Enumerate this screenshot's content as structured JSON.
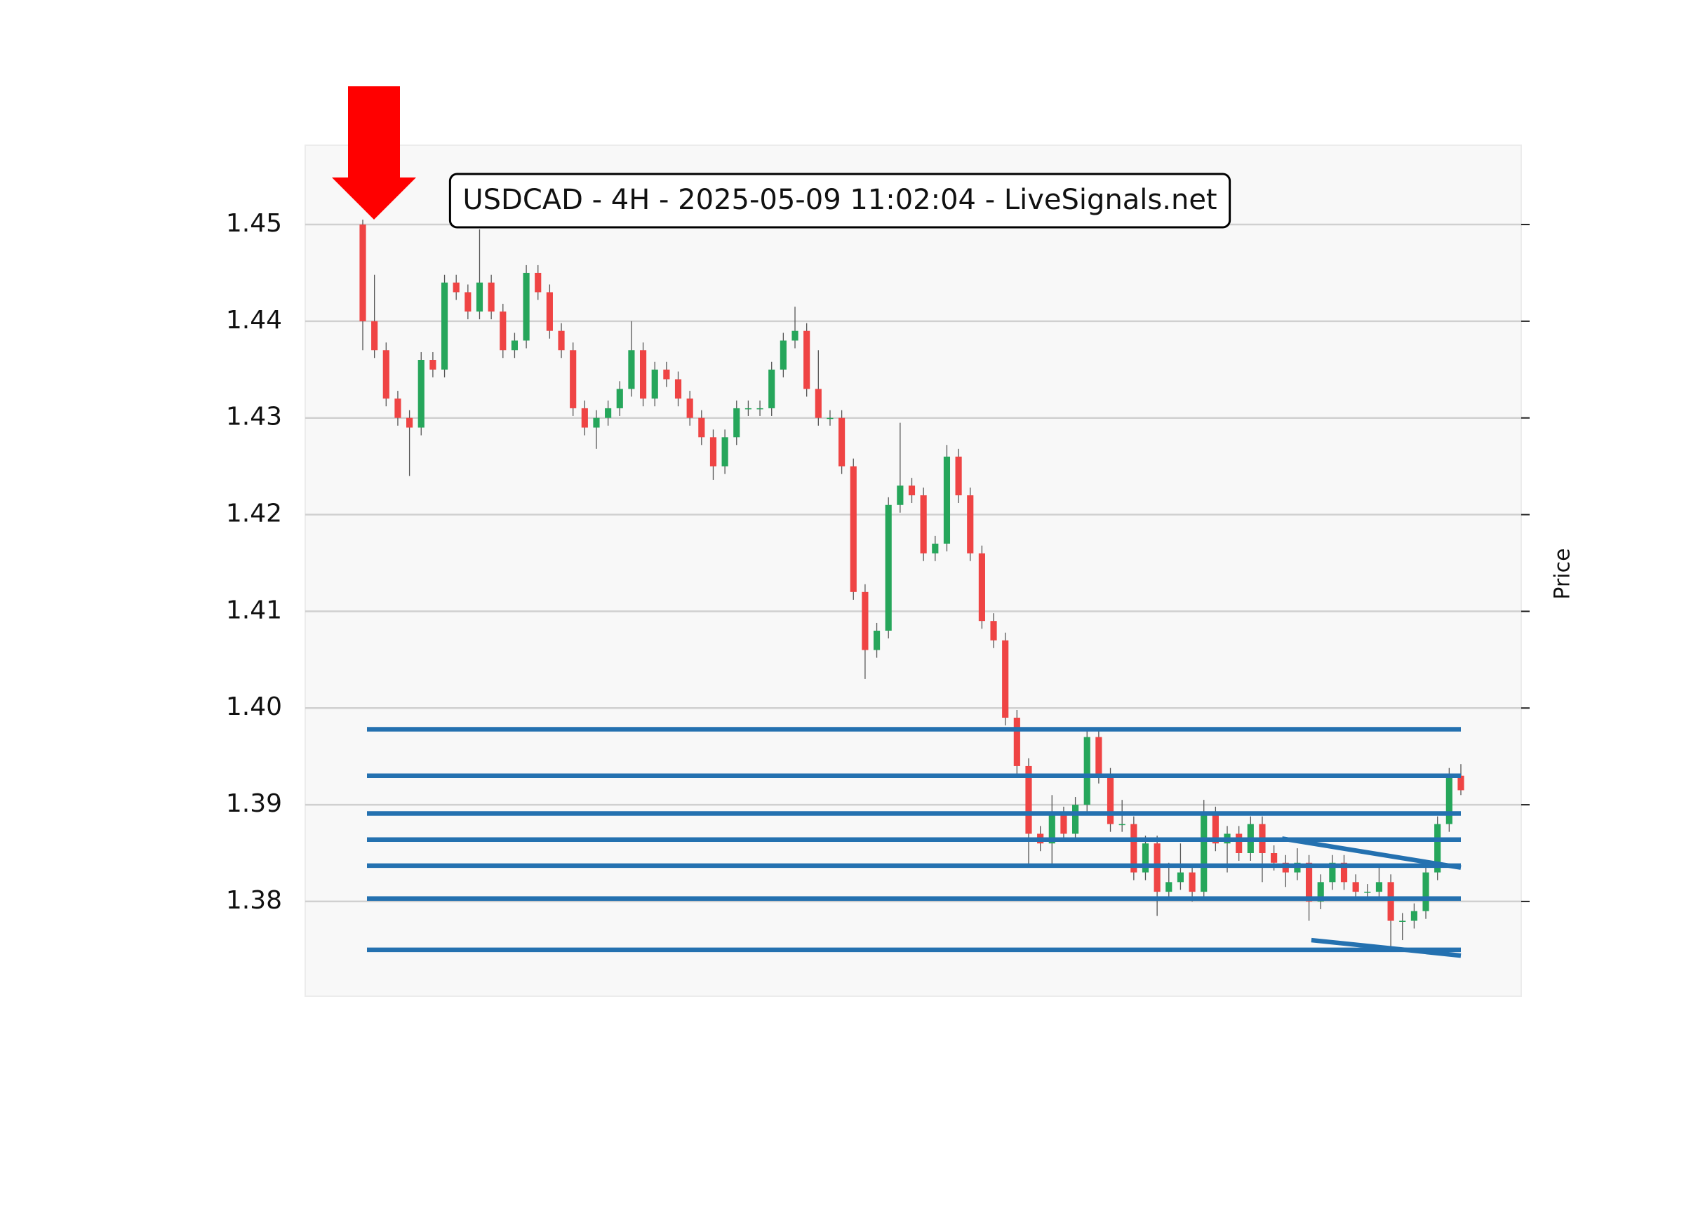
{
  "chart_data": {
    "type": "candlestick",
    "title": "USDCAD - 4H - 2025-05-09 11:02:04 - LiveSignals.net",
    "ylabel": "Price",
    "ylim": [
      1.3702,
      1.4582
    ],
    "yticks": [
      1.38,
      1.39,
      {
        "value": 1.4,
        "label": "1.40"
      },
      1.41,
      1.42,
      1.43,
      1.44,
      1.45
    ],
    "grid": true,
    "up_color": "#26a65b",
    "down_color": "#ef4444",
    "level_color": "#2471b0",
    "open": [
      1.45,
      1.44,
      1.437,
      1.432,
      1.43,
      1.429,
      1.436,
      1.435,
      1.444,
      1.443,
      1.441,
      1.444,
      1.441,
      1.437,
      1.438,
      1.445,
      1.443,
      1.439,
      1.437,
      1.431,
      1.429,
      1.43,
      1.431,
      1.433,
      1.437,
      1.432,
      1.435,
      1.434,
      1.432,
      1.43,
      1.428,
      1.425,
      1.428,
      1.431,
      1.431,
      1.431,
      1.435,
      1.438,
      1.439,
      1.433,
      1.43,
      1.43,
      1.425,
      1.412,
      1.406,
      1.408,
      1.421,
      1.423,
      1.422,
      1.416,
      1.417,
      1.426,
      1.422,
      1.416,
      1.409,
      1.407,
      1.399,
      1.394,
      1.387,
      1.386,
      1.389,
      1.387,
      1.39,
      1.397,
      1.393,
      1.388,
      1.388,
      1.383,
      1.386,
      1.381,
      1.382,
      1.383,
      1.381,
      1.389,
      1.386,
      1.387,
      1.385,
      1.388,
      1.385,
      1.384,
      1.383,
      1.384,
      1.38,
      1.382,
      1.384,
      1.382,
      1.381,
      1.381,
      1.382,
      1.378,
      1.378,
      1.379,
      1.383,
      1.388,
      1.393
    ],
    "high": [
      1.4505,
      1.4448,
      1.4378,
      1.4328,
      1.4308,
      1.4368,
      1.4368,
      1.4448,
      1.4448,
      1.4438,
      1.4495,
      1.4448,
      1.4418,
      1.4388,
      1.4458,
      1.4458,
      1.4438,
      1.4398,
      1.4378,
      1.4318,
      1.4308,
      1.4318,
      1.4338,
      1.44,
      1.4378,
      1.4358,
      1.4358,
      1.4348,
      1.4328,
      1.4308,
      1.4288,
      1.4288,
      1.4318,
      1.4318,
      1.4318,
      1.4358,
      1.4388,
      1.4415,
      1.4398,
      1.437,
      1.4308,
      1.4308,
      1.4258,
      1.4128,
      1.4088,
      1.4218,
      1.4295,
      1.4238,
      1.4228,
      1.4178,
      1.4272,
      1.4268,
      1.4228,
      1.4168,
      1.4098,
      1.4078,
      1.3998,
      1.3948,
      1.3878,
      1.391,
      1.3898,
      1.3908,
      1.3978,
      1.3978,
      1.3938,
      1.3905,
      1.3888,
      1.3868,
      1.3868,
      1.384,
      1.386,
      1.3838,
      1.3905,
      1.3898,
      1.3878,
      1.3878,
      1.3888,
      1.3888,
      1.3858,
      1.3848,
      1.3855,
      1.3848,
      1.3828,
      1.3848,
      1.3848,
      1.3828,
      1.3818,
      1.3835,
      1.3828,
      1.3788,
      1.3798,
      1.3838,
      1.3888,
      1.3938,
      1.3942
    ],
    "low": [
      1.437,
      1.4362,
      1.4312,
      1.4292,
      1.424,
      1.4282,
      1.4342,
      1.4342,
      1.4422,
      1.4402,
      1.4402,
      1.4402,
      1.4362,
      1.4362,
      1.4372,
      1.4422,
      1.4382,
      1.4362,
      1.4302,
      1.4282,
      1.4268,
      1.4292,
      1.4302,
      1.4322,
      1.4312,
      1.4312,
      1.4332,
      1.4312,
      1.4292,
      1.4272,
      1.4236,
      1.4242,
      1.4272,
      1.4302,
      1.4302,
      1.4302,
      1.4342,
      1.4372,
      1.4322,
      1.4292,
      1.4292,
      1.4242,
      1.4112,
      1.403,
      1.4052,
      1.4072,
      1.4202,
      1.4212,
      1.4152,
      1.4152,
      1.4162,
      1.4212,
      1.4152,
      1.4082,
      1.4062,
      1.3982,
      1.3932,
      1.3838,
      1.3852,
      1.3838,
      1.3862,
      1.3862,
      1.3892,
      1.3922,
      1.3872,
      1.3872,
      1.3822,
      1.3822,
      1.3785,
      1.3802,
      1.3812,
      1.38,
      1.3802,
      1.3852,
      1.383,
      1.3842,
      1.3842,
      1.382,
      1.3832,
      1.3815,
      1.3822,
      1.378,
      1.3792,
      1.3812,
      1.3812,
      1.3802,
      1.3802,
      1.3802,
      1.375,
      1.376,
      1.3772,
      1.3782,
      1.3822,
      1.3872,
      1.391
    ],
    "close": [
      1.44,
      1.437,
      1.432,
      1.43,
      1.429,
      1.436,
      1.435,
      1.444,
      1.443,
      1.441,
      1.444,
      1.441,
      1.437,
      1.438,
      1.445,
      1.443,
      1.439,
      1.437,
      1.431,
      1.429,
      1.43,
      1.431,
      1.433,
      1.437,
      1.432,
      1.435,
      1.434,
      1.432,
      1.43,
      1.428,
      1.425,
      1.428,
      1.431,
      1.431,
      1.431,
      1.435,
      1.438,
      1.439,
      1.433,
      1.43,
      1.43,
      1.425,
      1.412,
      1.406,
      1.408,
      1.421,
      1.423,
      1.422,
      1.416,
      1.417,
      1.426,
      1.422,
      1.416,
      1.409,
      1.407,
      1.399,
      1.394,
      1.387,
      1.386,
      1.389,
      1.387,
      1.39,
      1.397,
      1.393,
      1.388,
      1.388,
      1.383,
      1.386,
      1.381,
      1.382,
      1.383,
      1.381,
      1.389,
      1.386,
      1.387,
      1.385,
      1.388,
      1.385,
      1.384,
      1.383,
      1.384,
      1.38,
      1.382,
      1.384,
      1.382,
      1.381,
      1.381,
      1.382,
      1.378,
      1.378,
      1.379,
      1.383,
      1.388,
      1.393,
      1.3915
    ],
    "levels": [
      1.3978,
      1.393,
      1.3891,
      1.3864,
      1.3837,
      1.3803,
      1.375
    ],
    "trendlines": [
      {
        "x": [
          78.7,
          94
        ],
        "y": [
          1.3865,
          1.3835
        ]
      },
      {
        "x": [
          81.2,
          94
        ],
        "y": [
          1.376,
          1.3744
        ]
      }
    ]
  }
}
